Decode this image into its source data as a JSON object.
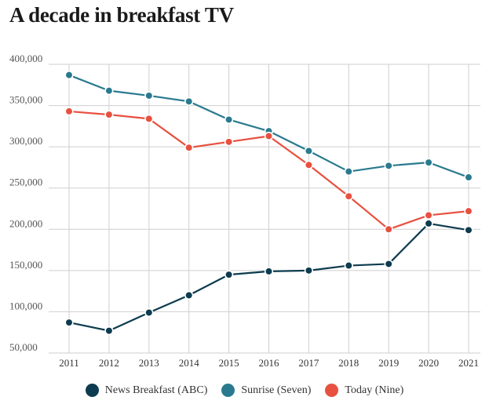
{
  "title": "A decade in breakfast TV",
  "chart_data": {
    "type": "line",
    "title": "A decade in breakfast TV",
    "xlabel": "",
    "ylabel": "",
    "categories": [
      "2011",
      "2012",
      "2013",
      "2014",
      "2015",
      "2016",
      "2017",
      "2018",
      "2019",
      "2020",
      "2021"
    ],
    "yticks": [
      "400,000",
      "350,000",
      "300,000",
      "250,000",
      "200,000",
      "150,000",
      "100,000",
      "50,000"
    ],
    "ytick_values": [
      400000,
      350000,
      300000,
      250000,
      200000,
      150000,
      100000,
      50000
    ],
    "ylim": [
      50000,
      400000
    ],
    "grid": true,
    "legend_position": "bottom",
    "series": [
      {
        "name": "News Breakfast (ABC)",
        "color": "#0d3b4f",
        "values": [
          87000,
          77000,
          99000,
          120000,
          145000,
          149000,
          150000,
          156000,
          158000,
          207000,
          199000
        ]
      },
      {
        "name": "Sunrise (Seven)",
        "color": "#2a7a8f",
        "values": [
          387000,
          368000,
          362000,
          355000,
          333000,
          319000,
          295000,
          270000,
          277000,
          281000,
          263000
        ]
      },
      {
        "name": "Today (Nine)",
        "color": "#e8503f",
        "values": [
          343000,
          339000,
          334000,
          299000,
          306000,
          313000,
          278000,
          240000,
          200000,
          217000,
          222000
        ]
      }
    ]
  }
}
